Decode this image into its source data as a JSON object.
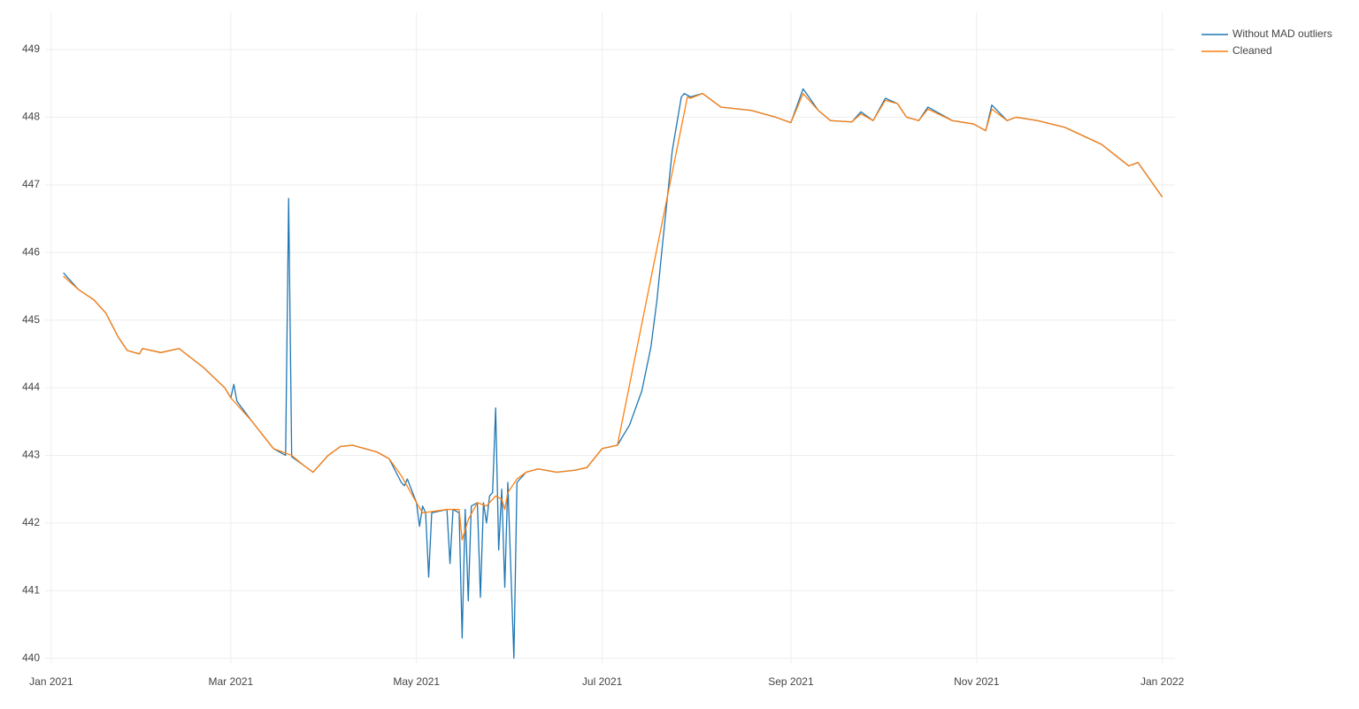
{
  "chart_data": {
    "type": "line",
    "xlim": [
      "2020-12-30",
      "2022-01-04"
    ],
    "xticks": [
      {
        "value": "2021-01-01",
        "label": "Jan 2021"
      },
      {
        "value": "2021-03-01",
        "label": "Mar 2021"
      },
      {
        "value": "2021-05-01",
        "label": "May 2021"
      },
      {
        "value": "2021-07-01",
        "label": "Jul 2021"
      },
      {
        "value": "2021-09-01",
        "label": "Sep 2021"
      },
      {
        "value": "2021-11-01",
        "label": "Nov 2021"
      },
      {
        "value": "2022-01-01",
        "label": "Jan 2022"
      }
    ],
    "ylim": [
      439.93,
      449.55
    ],
    "yticks": [
      440,
      441,
      442,
      443,
      444,
      445,
      446,
      447,
      448,
      449
    ],
    "grid": true,
    "legend": "top-right",
    "series": [
      {
        "name": "Without MAD outliers",
        "color": "#1f77b4",
        "x": [
          "2021-01-05",
          "2021-01-10",
          "2021-01-15",
          "2021-01-19",
          "2021-01-23",
          "2021-01-26",
          "2021-01-30",
          "2021-01-31",
          "2021-02-06",
          "2021-02-12",
          "2021-02-20",
          "2021-02-27",
          "2021-03-01",
          "2021-03-02",
          "2021-03-03",
          "2021-03-08",
          "2021-03-15",
          "2021-03-19",
          "2021-03-20",
          "2021-03-21",
          "2021-03-25",
          "2021-03-28",
          "2021-04-02",
          "2021-04-06",
          "2021-04-10",
          "2021-04-18",
          "2021-04-22",
          "2021-04-26",
          "2021-04-27",
          "2021-04-28",
          "2021-05-01",
          "2021-05-02",
          "2021-05-03",
          "2021-05-04",
          "2021-05-05",
          "2021-05-06",
          "2021-05-11",
          "2021-05-12",
          "2021-05-13",
          "2021-05-15",
          "2021-05-16",
          "2021-05-17",
          "2021-05-18",
          "2021-05-19",
          "2021-05-21",
          "2021-05-22",
          "2021-05-23",
          "2021-05-24",
          "2021-05-25",
          "2021-05-26",
          "2021-05-27",
          "2021-05-28",
          "2021-05-29",
          "2021-05-30",
          "2021-05-31",
          "2021-06-02",
          "2021-06-03",
          "2021-06-06",
          "2021-06-10",
          "2021-06-16",
          "2021-06-22",
          "2021-06-26",
          "2021-07-01",
          "2021-07-06",
          "2021-07-10",
          "2021-07-14",
          "2021-07-17",
          "2021-07-19",
          "2021-07-21",
          "2021-07-24",
          "2021-07-27",
          "2021-07-28",
          "2021-07-30",
          "2021-08-03",
          "2021-08-09",
          "2021-08-19",
          "2021-08-27",
          "2021-09-01",
          "2021-09-05",
          "2021-09-10",
          "2021-09-14",
          "2021-09-21",
          "2021-09-24",
          "2021-09-28",
          "2021-10-02",
          "2021-10-06",
          "2021-10-09",
          "2021-10-13",
          "2021-10-16",
          "2021-10-24",
          "2021-10-31",
          "2021-11-04",
          "2021-11-06",
          "2021-11-11",
          "2021-11-14",
          "2021-11-21",
          "2021-11-30",
          "2021-12-12",
          "2021-12-21",
          "2021-12-24",
          "2022-01-01"
        ],
        "values": [
          445.7,
          445.45,
          445.3,
          445.1,
          444.75,
          444.55,
          444.5,
          444.58,
          444.52,
          444.58,
          444.3,
          444.0,
          443.85,
          444.05,
          443.8,
          443.5,
          443.1,
          443.0,
          446.8,
          442.98,
          442.85,
          442.75,
          443.0,
          443.13,
          443.15,
          443.05,
          442.95,
          442.6,
          442.55,
          442.65,
          442.3,
          441.95,
          442.25,
          442.15,
          441.2,
          442.15,
          442.2,
          441.4,
          442.2,
          442.15,
          440.3,
          442.2,
          440.85,
          442.25,
          442.3,
          440.9,
          442.3,
          442.0,
          442.4,
          442.45,
          443.7,
          441.6,
          442.5,
          441.05,
          442.6,
          440.0,
          442.6,
          442.75,
          442.8,
          442.75,
          442.78,
          442.82,
          443.1,
          443.15,
          443.45,
          443.95,
          444.6,
          445.3,
          446.2,
          447.5,
          448.3,
          448.35,
          448.3,
          448.35,
          448.15,
          448.1,
          448.0,
          447.92,
          448.42,
          448.1,
          447.95,
          447.93,
          448.08,
          447.95,
          448.28,
          448.2,
          448.0,
          447.95,
          448.15,
          447.95,
          447.9,
          447.8,
          448.18,
          447.95,
          448.0,
          447.95,
          447.85,
          447.6,
          447.28,
          447.33,
          446.82
        ]
      },
      {
        "name": "Cleaned",
        "color": "#ff7f0e",
        "x": [
          "2021-01-05",
          "2021-01-10",
          "2021-01-15",
          "2021-01-19",
          "2021-01-23",
          "2021-01-26",
          "2021-01-30",
          "2021-01-31",
          "2021-02-06",
          "2021-02-12",
          "2021-02-20",
          "2021-02-27",
          "2021-03-01",
          "2021-03-08",
          "2021-03-15",
          "2021-03-21",
          "2021-03-25",
          "2021-03-28",
          "2021-04-02",
          "2021-04-06",
          "2021-04-10",
          "2021-04-18",
          "2021-04-22",
          "2021-04-26",
          "2021-05-01",
          "2021-05-03",
          "2021-05-11",
          "2021-05-15",
          "2021-05-16",
          "2021-05-18",
          "2021-05-21",
          "2021-05-24",
          "2021-05-27",
          "2021-05-29",
          "2021-05-30",
          "2021-05-31",
          "2021-06-03",
          "2021-06-06",
          "2021-06-10",
          "2021-06-16",
          "2021-06-22",
          "2021-06-26",
          "2021-07-01",
          "2021-07-06",
          "2021-07-29",
          "2021-07-30",
          "2021-08-03",
          "2021-08-09",
          "2021-08-19",
          "2021-08-27",
          "2021-09-01",
          "2021-09-05",
          "2021-09-10",
          "2021-09-14",
          "2021-09-21",
          "2021-09-24",
          "2021-09-28",
          "2021-10-02",
          "2021-10-06",
          "2021-10-09",
          "2021-10-13",
          "2021-10-16",
          "2021-10-24",
          "2021-10-31",
          "2021-11-04",
          "2021-11-06",
          "2021-11-11",
          "2021-11-14",
          "2021-11-21",
          "2021-11-30",
          "2021-12-12",
          "2021-12-21",
          "2021-12-24",
          "2022-01-01"
        ],
        "values": [
          445.65,
          445.45,
          445.3,
          445.1,
          444.75,
          444.55,
          444.5,
          444.58,
          444.52,
          444.58,
          444.3,
          444.0,
          443.85,
          443.5,
          443.1,
          443.0,
          442.85,
          442.75,
          443.0,
          443.13,
          443.15,
          443.05,
          442.95,
          442.7,
          442.3,
          442.15,
          442.2,
          442.2,
          441.75,
          442.05,
          442.3,
          442.25,
          442.4,
          442.35,
          442.2,
          442.45,
          442.65,
          442.75,
          442.8,
          442.75,
          442.78,
          442.82,
          443.1,
          443.15,
          448.3,
          448.28,
          448.35,
          448.15,
          448.1,
          448.0,
          447.92,
          448.35,
          448.1,
          447.95,
          447.93,
          448.05,
          447.95,
          448.25,
          448.2,
          448.0,
          447.95,
          448.12,
          447.95,
          447.9,
          447.8,
          448.12,
          447.95,
          448.0,
          447.95,
          447.85,
          447.6,
          447.28,
          447.33,
          446.82
        ]
      }
    ]
  }
}
